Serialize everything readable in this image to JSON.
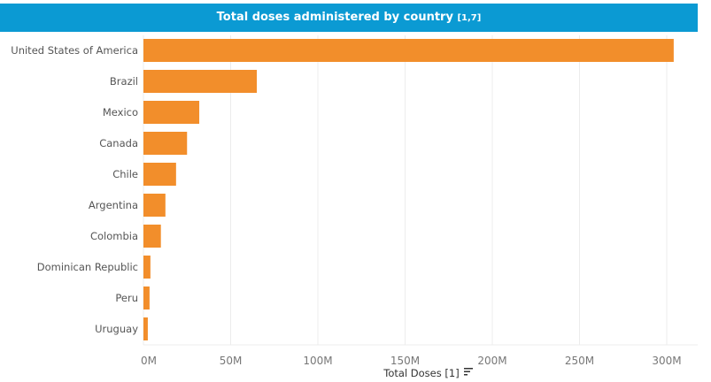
{
  "chart_data": {
    "type": "bar",
    "orientation": "horizontal",
    "title": "Total doses administered by country",
    "title_note": "[1,7]",
    "xlabel": "Total Doses [1]",
    "ylabel": "",
    "categories": [
      "United States of America",
      "Brazil",
      "Mexico",
      "Canada",
      "Chile",
      "Argentina",
      "Colombia",
      "Dominican Republic",
      "Peru",
      "Uruguay"
    ],
    "values": [
      304,
      65,
      32,
      25,
      18.7,
      12.6,
      10,
      4,
      3.5,
      2.5
    ],
    "value_unit": "M",
    "xlim": [
      0,
      310
    ],
    "xticks": [
      0,
      50,
      100,
      150,
      200,
      250,
      300
    ],
    "xtick_labels": [
      "0M",
      "50M",
      "100M",
      "150M",
      "200M",
      "250M",
      "300M"
    ],
    "grid": true,
    "sorted": "descending",
    "colors": {
      "bar": "#f28e2b",
      "header": "#0b9ad3",
      "grid": "#ececec"
    }
  }
}
